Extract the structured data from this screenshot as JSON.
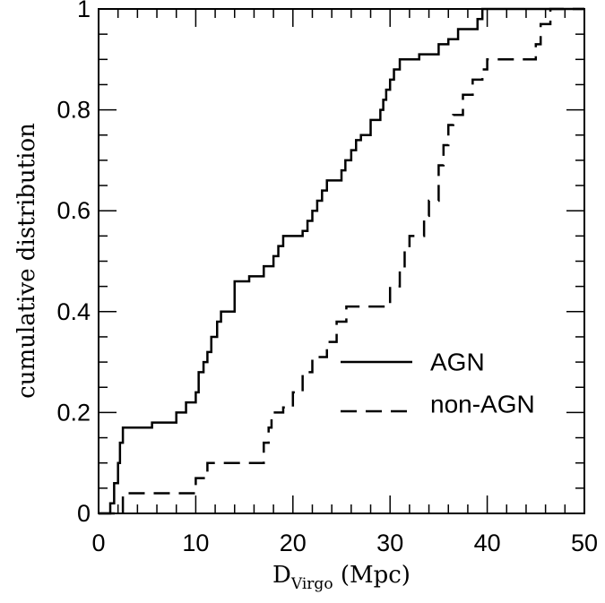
{
  "chart_data": {
    "type": "line",
    "xlabel": {
      "main": "D",
      "sub": "Virgo",
      "rest": " (Mpc)"
    },
    "ylabel": "cumulative distribution",
    "xlim": [
      0,
      50
    ],
    "ylim": [
      0,
      1
    ],
    "x_ticks": [
      "0",
      "10",
      "20",
      "30",
      "40",
      "50"
    ],
    "y_ticks": [
      "0",
      "0.2",
      "0.4",
      "0.6",
      "0.8",
      "1"
    ],
    "grid": false,
    "legend_position": "lower-right",
    "series": [
      {
        "name": "AGN",
        "style": "solid",
        "steps": [
          [
            0,
            0
          ],
          [
            1.2,
            0.02
          ],
          [
            1.6,
            0.06
          ],
          [
            2.0,
            0.1
          ],
          [
            2.2,
            0.14
          ],
          [
            2.5,
            0.17
          ],
          [
            5.5,
            0.18
          ],
          [
            8.0,
            0.2
          ],
          [
            9.0,
            0.22
          ],
          [
            10.0,
            0.24
          ],
          [
            10.3,
            0.28
          ],
          [
            10.8,
            0.3
          ],
          [
            11.2,
            0.32
          ],
          [
            11.6,
            0.35
          ],
          [
            12.2,
            0.38
          ],
          [
            12.6,
            0.4
          ],
          [
            14.0,
            0.46
          ],
          [
            15.5,
            0.47
          ],
          [
            17.0,
            0.49
          ],
          [
            18.0,
            0.51
          ],
          [
            18.5,
            0.53
          ],
          [
            19.0,
            0.55
          ],
          [
            21.0,
            0.56
          ],
          [
            21.5,
            0.58
          ],
          [
            22.0,
            0.6
          ],
          [
            22.5,
            0.62
          ],
          [
            23.0,
            0.64
          ],
          [
            23.5,
            0.66
          ],
          [
            25.0,
            0.68
          ],
          [
            25.4,
            0.7
          ],
          [
            26.0,
            0.72
          ],
          [
            26.5,
            0.74
          ],
          [
            27.0,
            0.75
          ],
          [
            28.0,
            0.78
          ],
          [
            29.0,
            0.8
          ],
          [
            29.3,
            0.82
          ],
          [
            29.6,
            0.84
          ],
          [
            30.0,
            0.86
          ],
          [
            30.4,
            0.88
          ],
          [
            31.0,
            0.9
          ],
          [
            33.0,
            0.91
          ],
          [
            35.0,
            0.93
          ],
          [
            36.0,
            0.94
          ],
          [
            37.0,
            0.96
          ],
          [
            39.0,
            0.98
          ],
          [
            39.5,
            1.0
          ],
          [
            50,
            1.0
          ]
        ]
      },
      {
        "name": "non-AGN",
        "style": "dashed",
        "steps": [
          [
            0,
            0
          ],
          [
            2.5,
            0.04
          ],
          [
            10.0,
            0.07
          ],
          [
            11.2,
            0.1
          ],
          [
            17.0,
            0.14
          ],
          [
            17.5,
            0.17
          ],
          [
            17.8,
            0.2
          ],
          [
            19.0,
            0.21
          ],
          [
            20.0,
            0.24
          ],
          [
            21.0,
            0.28
          ],
          [
            22.0,
            0.31
          ],
          [
            23.5,
            0.34
          ],
          [
            24.5,
            0.38
          ],
          [
            25.5,
            0.41
          ],
          [
            30.0,
            0.45
          ],
          [
            31.0,
            0.48
          ],
          [
            31.5,
            0.52
          ],
          [
            32.0,
            0.55
          ],
          [
            33.5,
            0.59
          ],
          [
            34.0,
            0.62
          ],
          [
            35.0,
            0.69
          ],
          [
            35.5,
            0.73
          ],
          [
            36.0,
            0.77
          ],
          [
            36.5,
            0.79
          ],
          [
            37.5,
            0.83
          ],
          [
            38.5,
            0.86
          ],
          [
            39.5,
            0.88
          ],
          [
            40.0,
            0.9
          ],
          [
            45.0,
            0.93
          ],
          [
            45.5,
            0.97
          ],
          [
            46.5,
            1.0
          ],
          [
            50,
            1.0
          ]
        ]
      }
    ]
  },
  "legend": {
    "items": [
      {
        "label": "AGN",
        "style": "solid"
      },
      {
        "label": "non-AGN",
        "style": "dashed"
      }
    ]
  }
}
